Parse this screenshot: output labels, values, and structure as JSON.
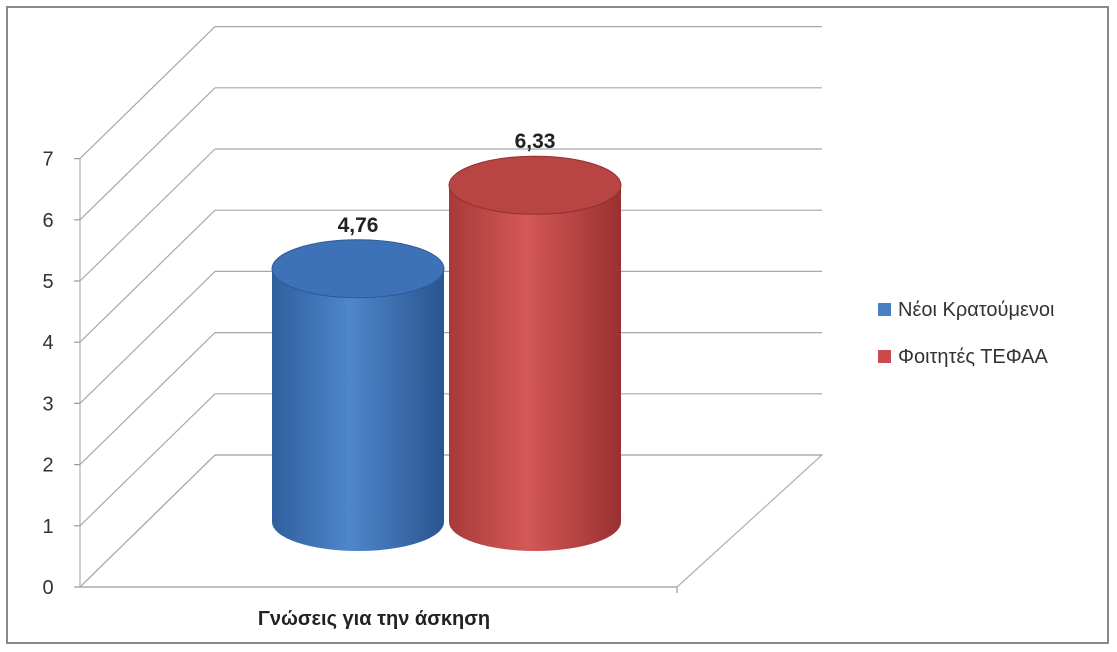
{
  "chart_data": {
    "type": "bar",
    "style": "3d-cylinder",
    "categories": [
      "Γνώσεις για την άσκηση"
    ],
    "series": [
      {
        "name": "Νέοι Κρατούμενοι",
        "values": [
          4.76
        ],
        "color": "#4a7fc4",
        "label": "4,76"
      },
      {
        "name": "Φοιτητές ΤΕΦΑΑ",
        "values": [
          6.33
        ],
        "color": "#c94b4b",
        "label": "6,33"
      }
    ],
    "yticks": [
      "0",
      "1",
      "2",
      "3",
      "4",
      "5",
      "6",
      "7"
    ],
    "ylim": [
      0,
      7
    ],
    "grid": true,
    "legend_position": "right"
  }
}
